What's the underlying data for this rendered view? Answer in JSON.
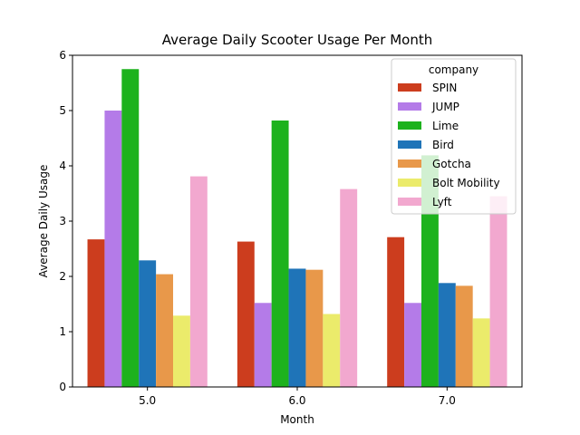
{
  "chart_data": {
    "type": "bar",
    "title": "Average Daily Scooter Usage Per Month",
    "xlabel": "Month",
    "ylabel": "Average Daily Usage",
    "categories": [
      "5.0",
      "6.0",
      "7.0"
    ],
    "ylim": [
      0,
      6
    ],
    "yticks": [
      "0",
      "1",
      "2",
      "3",
      "4",
      "5",
      "6"
    ],
    "legend": {
      "title": "company",
      "placement": "top-right"
    },
    "series": [
      {
        "name": "SPIN",
        "color": "#cc3d1e",
        "values": [
          2.67,
          2.63,
          2.71
        ]
      },
      {
        "name": "JUMP",
        "color": "#b47be8",
        "values": [
          5.0,
          1.52,
          1.52
        ]
      },
      {
        "name": "Lime",
        "color": "#1db21d",
        "values": [
          5.75,
          4.82,
          4.19
        ]
      },
      {
        "name": "Bird",
        "color": "#1f74b8",
        "values": [
          2.29,
          2.14,
          1.88
        ]
      },
      {
        "name": "Gotcha",
        "color": "#e8984a",
        "values": [
          2.04,
          2.12,
          1.83
        ]
      },
      {
        "name": "Bolt Mobility",
        "color": "#ebeb6b",
        "values": [
          1.29,
          1.32,
          1.24
        ]
      },
      {
        "name": "Lyft",
        "color": "#f2a8cf",
        "values": [
          3.81,
          3.58,
          3.45
        ]
      }
    ]
  }
}
